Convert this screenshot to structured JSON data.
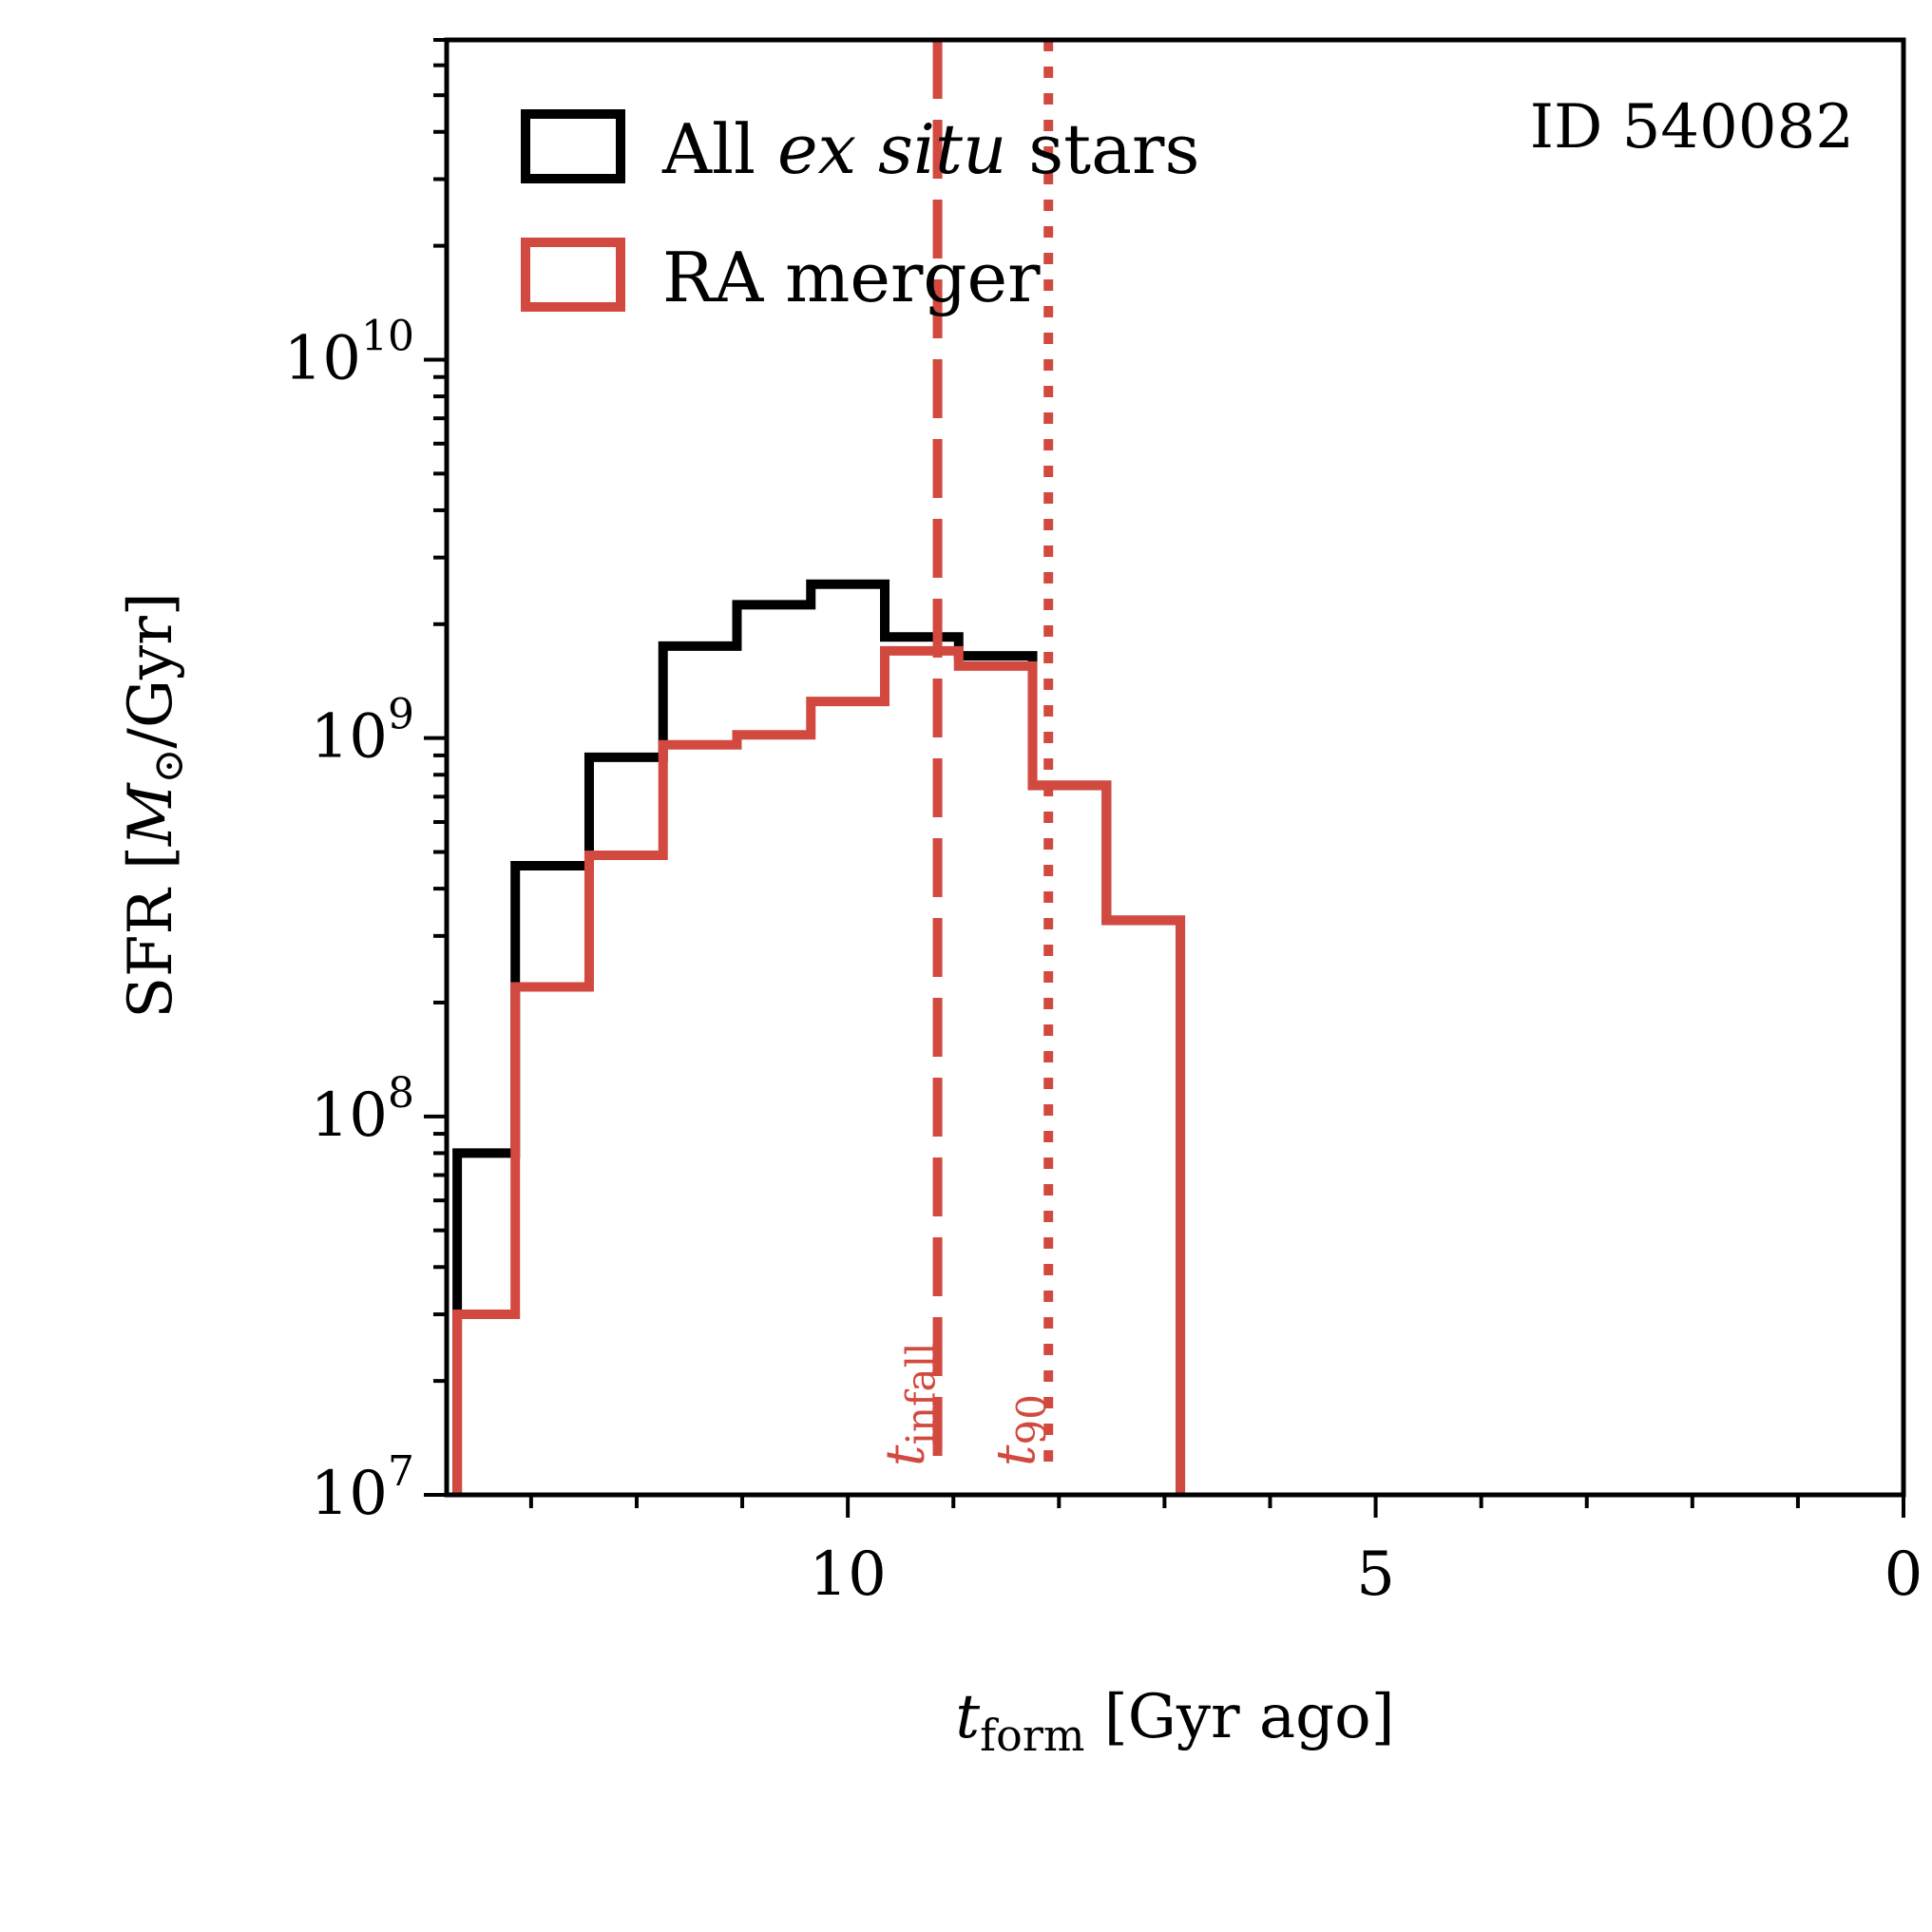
{
  "colors": {
    "all": "#000000",
    "ra": "#d24a3f"
  },
  "chart_data": {
    "type": "histogram-step",
    "id_label": "ID 540082",
    "xlabel": {
      "symbol": "t",
      "sub": "form",
      "rest": " [Gyr ago]"
    },
    "ylabel": {
      "prefix": "SFR [",
      "symbol": "M",
      "sun": "⊙",
      "suffix": "/Gyr]"
    },
    "xlim": [
      13.8,
      0
    ],
    "ylim": [
      10000000.0,
      70000000000.0
    ],
    "yscale": "log",
    "xticks": [
      {
        "value": 10,
        "label": "10"
      },
      {
        "value": 5,
        "label": "5"
      },
      {
        "value": 0,
        "label": "0"
      }
    ],
    "yticks": [
      {
        "value": 10000000.0,
        "base": "10",
        "exp": "7"
      },
      {
        "value": 100000000.0,
        "base": "10",
        "exp": "8"
      },
      {
        "value": 1000000000.0,
        "base": "10",
        "exp": "9"
      },
      {
        "value": 10000000000.0,
        "base": "10",
        "exp": "10"
      }
    ],
    "bin_edges": [
      13.7,
      13.15,
      12.45,
      11.75,
      11.05,
      10.35,
      9.65,
      8.95,
      8.25,
      7.55,
      6.85
    ],
    "legend": [
      {
        "key": "all",
        "parts": [
          {
            "t": "All ",
            "i": false
          },
          {
            "t": "ex situ",
            "i": true
          },
          {
            "t": " stars",
            "i": false
          }
        ]
      },
      {
        "key": "ra",
        "parts": [
          {
            "t": "RA merger",
            "i": false
          }
        ]
      }
    ],
    "series": [
      {
        "name": "All ex situ stars",
        "color_key": "all",
        "values": [
          80000000.0,
          460000000.0,
          890000000.0,
          1750000000.0,
          2250000000.0,
          2550000000.0,
          1850000000.0,
          1650000000.0,
          750000000.0,
          330000000.0
        ]
      },
      {
        "name": "RA merger",
        "color_key": "ra",
        "values": [
          30000000.0,
          220000000.0,
          490000000.0,
          960000000.0,
          1020000000.0,
          1250000000.0,
          1700000000.0,
          1550000000.0,
          750000000.0,
          330000000.0
        ]
      }
    ],
    "vlines": [
      {
        "name": "t_infall",
        "x": 9.15,
        "style": "dashed",
        "symbol": "t",
        "sub": "infall"
      },
      {
        "name": "t_90",
        "x": 8.1,
        "style": "dotted",
        "symbol": "t",
        "sub": "90"
      }
    ]
  }
}
